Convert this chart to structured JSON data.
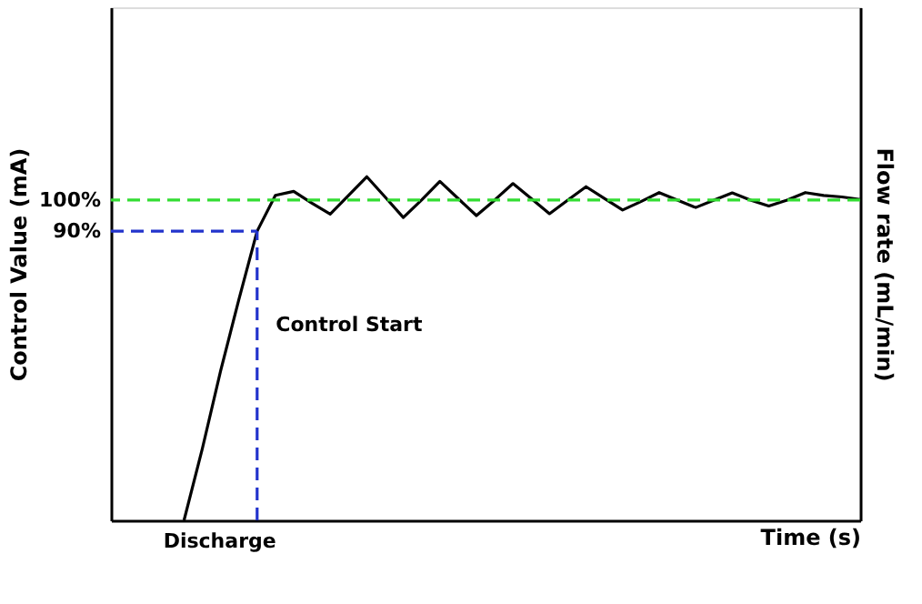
{
  "chart_data": {
    "type": "line",
    "ylabel": "Control Value (mA)",
    "y2label": "Flow rate (mL/min)",
    "xlabel": "Time (s)",
    "categories": [
      null,
      null,
      null,
      null,
      null,
      null,
      null,
      null,
      null,
      null,
      null,
      null,
      null,
      null,
      null,
      null,
      null,
      null,
      null,
      null,
      null,
      null,
      null,
      null,
      null,
      null,
      null,
      null,
      null,
      null,
      null,
      null,
      null,
      null,
      null,
      null,
      null,
      null,
      null,
      null,
      null,
      null
    ],
    "ylim": [
      -3,
      162
    ],
    "yticks": [
      {
        "value": 90,
        "label": "90%"
      },
      {
        "value": 100,
        "label": "100%"
      }
    ],
    "tick_labels": "y",
    "series": [
      {
        "color": "#000000",
        "values": [
          null,
          null,
          null,
          null,
          -3,
          20,
          45,
          68,
          90,
          101.5,
          102.8,
          99,
          95.5,
          101.5,
          107.5,
          101,
          94.4,
          100,
          106,
          100.5,
          95,
          100,
          105.3,
          100.5,
          95.6,
          100,
          104.3,
          100.5,
          96.8,
          99.5,
          102.4,
          100,
          97.6,
          100,
          102.3,
          100,
          98.1,
          100,
          102.4,
          101.5,
          101,
          100.2
        ]
      },
      {
        "color": "#2233cc",
        "line_style": "dashed",
        "values": [
          90,
          90,
          90,
          90,
          90,
          90,
          90,
          90,
          90,
          null,
          null,
          null,
          null,
          null,
          null,
          null,
          null,
          null,
          null,
          null,
          null,
          null,
          null,
          null,
          null,
          null,
          null,
          null,
          null,
          null,
          null,
          null,
          null,
          null,
          null,
          null,
          null,
          null,
          null,
          null,
          null,
          null
        ],
        "errors": [
          null,
          null,
          null,
          null,
          null,
          null,
          null,
          null,
          [
            -3,
            90
          ],
          null,
          null,
          null,
          null,
          null,
          null,
          null,
          null,
          null,
          null,
          null,
          null,
          null,
          null,
          null,
          null,
          null,
          null,
          null,
          null,
          null,
          null,
          null,
          null,
          null,
          null,
          null,
          null,
          null,
          null,
          null,
          null,
          null
        ]
      }
    ],
    "ref_lines": [
      {
        "axis": "y",
        "value": 100,
        "color": "#33dd33",
        "line_style": "dashed"
      }
    ],
    "annotations": [
      "Discharge",
      "Control Start"
    ]
  }
}
